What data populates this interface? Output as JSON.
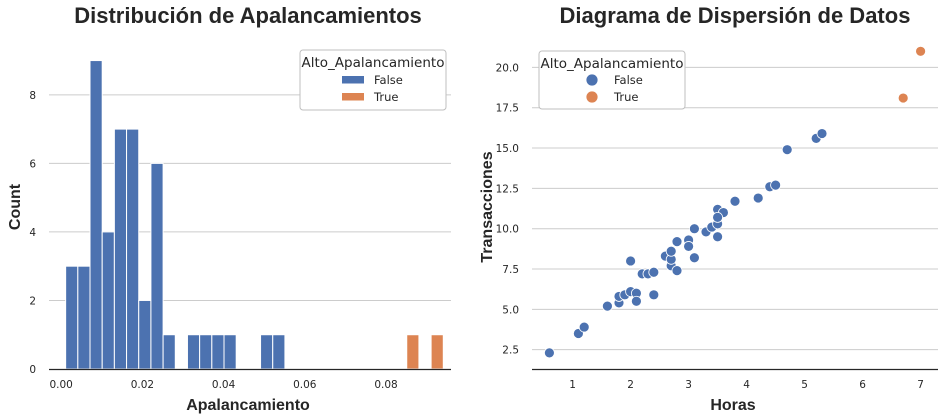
{
  "chart_data": [
    {
      "type": "bar",
      "title": "Distribución de Apalancamientos",
      "xlabel": "Apalancamiento",
      "ylabel": "Count",
      "xlim": [
        -0.003,
        0.096
      ],
      "ylim": [
        0,
        9.6
      ],
      "xticks": [
        "0.00",
        "0.02",
        "0.04",
        "0.06",
        "0.08"
      ],
      "xtick_values": [
        0,
        0.02,
        0.04,
        0.06,
        0.08
      ],
      "yticks": [
        0,
        2,
        4,
        6,
        8
      ],
      "bin_width": 0.003,
      "grid": "horizontal",
      "legend": {
        "title": "Alto_Apalancamiento",
        "placement": "top-right",
        "entries": [
          {
            "label": "False",
            "color": "#4c72b0"
          },
          {
            "label": "True",
            "color": "#dd8452"
          }
        ]
      },
      "series": [
        {
          "name": "False",
          "color": "#4c72b0",
          "bins_start": [
            0.0011,
            0.0041,
            0.0071,
            0.0101,
            0.0131,
            0.0161,
            0.0191,
            0.0221,
            0.0251,
            0.0281,
            0.0311,
            0.0341,
            0.0371,
            0.0401,
            0.0431,
            0.0461,
            0.0491,
            0.0521
          ],
          "values": [
            3,
            3,
            9,
            4,
            7,
            7,
            2,
            6,
            1,
            0,
            1,
            1,
            1,
            1,
            0,
            0,
            1,
            1
          ]
        },
        {
          "name": "True",
          "color": "#dd8452",
          "bins_start": [
            0.0851,
            0.0911
          ],
          "values": [
            1,
            1
          ]
        }
      ]
    },
    {
      "type": "scatter",
      "title": "Diagrama de Dispersión de Datos",
      "xlabel": "Horas",
      "ylabel": "Transacciones",
      "xlim": [
        0.3,
        7.3
      ],
      "ylim": [
        1.3,
        21.7
      ],
      "xticks": [
        "1",
        "2",
        "3",
        "4",
        "5",
        "6",
        "7"
      ],
      "xtick_values": [
        1,
        2,
        3,
        4,
        5,
        6,
        7
      ],
      "yticks": [
        "2.5",
        "5.0",
        "7.5",
        "10.0",
        "12.5",
        "15.0",
        "17.5",
        "20.0"
      ],
      "ytick_values": [
        2.5,
        5,
        7.5,
        10,
        12.5,
        15,
        17.5,
        20
      ],
      "grid": "horizontal",
      "legend": {
        "title": "Alto_Apalancamiento",
        "placement": "top-left",
        "entries": [
          {
            "label": "False",
            "color": "#4c72b0"
          },
          {
            "label": "True",
            "color": "#dd8452"
          }
        ]
      },
      "series": [
        {
          "name": "False",
          "color": "#4c72b0",
          "points": [
            [
              0.6,
              2.3
            ],
            [
              1.1,
              3.5
            ],
            [
              1.2,
              3.9
            ],
            [
              1.6,
              5.2
            ],
            [
              1.8,
              5.4
            ],
            [
              1.8,
              5.8
            ],
            [
              1.9,
              5.9
            ],
            [
              2.0,
              6.1
            ],
            [
              2.1,
              6.0
            ],
            [
              2.1,
              5.5
            ],
            [
              2.0,
              8.0
            ],
            [
              2.2,
              7.2
            ],
            [
              2.3,
              7.2
            ],
            [
              2.4,
              7.3
            ],
            [
              2.4,
              5.9
            ],
            [
              2.6,
              8.3
            ],
            [
              2.7,
              7.7
            ],
            [
              2.7,
              8.1
            ],
            [
              2.7,
              8.6
            ],
            [
              2.8,
              9.2
            ],
            [
              2.8,
              7.4
            ],
            [
              3.0,
              9.3
            ],
            [
              3.0,
              8.9
            ],
            [
              3.1,
              10.0
            ],
            [
              3.1,
              8.2
            ],
            [
              3.3,
              9.8
            ],
            [
              3.4,
              10.1
            ],
            [
              3.5,
              9.5
            ],
            [
              3.5,
              10.3
            ],
            [
              3.5,
              11.2
            ],
            [
              3.6,
              11.0
            ],
            [
              3.5,
              10.7
            ],
            [
              3.8,
              11.7
            ],
            [
              4.2,
              11.9
            ],
            [
              4.4,
              12.6
            ],
            [
              4.5,
              12.7
            ],
            [
              4.7,
              14.9
            ],
            [
              5.2,
              15.6
            ],
            [
              5.3,
              15.9
            ]
          ]
        },
        {
          "name": "True",
          "color": "#dd8452",
          "points": [
            [
              6.7,
              18.1
            ],
            [
              7.0,
              21.0
            ]
          ]
        }
      ]
    }
  ]
}
